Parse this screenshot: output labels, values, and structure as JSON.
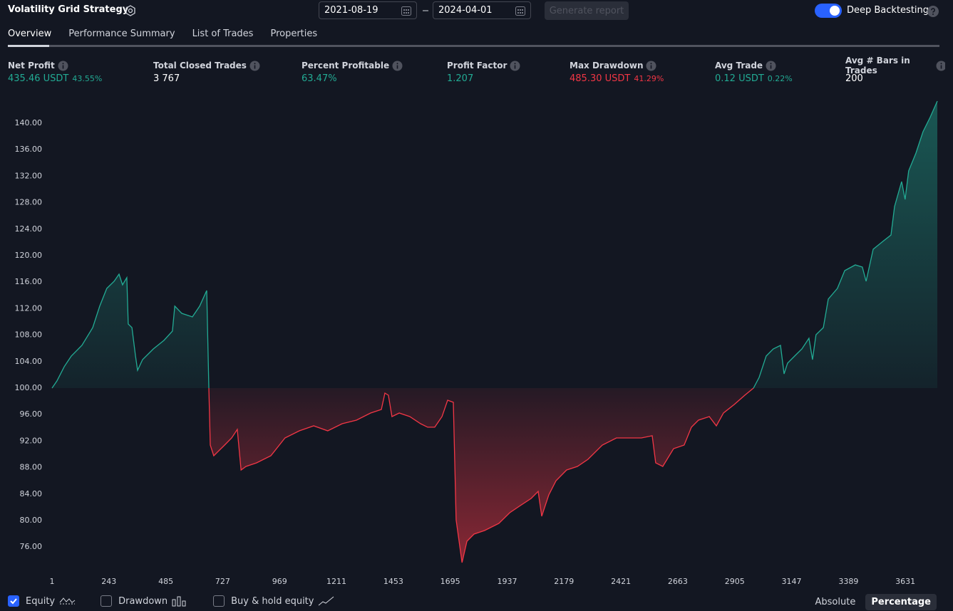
{
  "header": {
    "title": "Volatility Grid Strategy",
    "date_from": "2021-08-19",
    "date_to": "2024-04-01",
    "generate_button": "Generate report",
    "deep_backtesting": "Deep Backtesting"
  },
  "tabs": [
    "Overview",
    "Performance Summary",
    "List of Trades",
    "Properties"
  ],
  "metrics": [
    {
      "label": "Net Profit",
      "value": "435.46 USDT",
      "extra": "43.55%",
      "color": "#22ab94"
    },
    {
      "label": "Total Closed Trades",
      "value": "3 767",
      "color": "#ffffff"
    },
    {
      "label": "Percent Profitable",
      "value": "63.47%",
      "color": "#22ab94"
    },
    {
      "label": "Profit Factor",
      "value": "1.207",
      "color": "#22ab94"
    },
    {
      "label": "Max Drawdown",
      "value": "485.30 USDT",
      "extra": "41.29%",
      "color": "#f23645"
    },
    {
      "label": "Avg Trade",
      "value": "0.12 USDT",
      "extra": "0.22%",
      "color": "#22ab94"
    },
    {
      "label": "Avg # Bars in Trades",
      "value": "200",
      "color": "#ffffff"
    }
  ],
  "chart_data": {
    "type": "area",
    "x": [
      1,
      22,
      53,
      83,
      128,
      174,
      204,
      234,
      265,
      286,
      301,
      319,
      325,
      341,
      356,
      365,
      386,
      432,
      477,
      513,
      523,
      553,
      598,
      629,
      659,
      668,
      674,
      689,
      735,
      765,
      789,
      805,
      826,
      871,
      932,
      992,
      1053,
      1114,
      1174,
      1235,
      1296,
      1356,
      1402,
      1417,
      1432,
      1447,
      1478,
      1523,
      1569,
      1599,
      1629,
      1660,
      1684,
      1708,
      1720,
      1745,
      1766,
      1796,
      1841,
      1902,
      1948,
      1993,
      2039,
      2069,
      2084,
      2114,
      2145,
      2190,
      2236,
      2281,
      2342,
      2402,
      2448,
      2508,
      2554,
      2569,
      2599,
      2645,
      2690,
      2721,
      2751,
      2797,
      2827,
      2857,
      2903,
      2948,
      2985,
      3009,
      3039,
      3069,
      3100,
      3115,
      3130,
      3160,
      3191,
      3221,
      3236,
      3251,
      3282,
      3303,
      3342,
      3373,
      3418,
      3448,
      3464,
      3494,
      3539,
      3570,
      3585,
      3615,
      3630,
      3645,
      3676,
      3706,
      3736,
      3767
    ],
    "series": [
      {
        "name": "Equity",
        "color_up": "#22ab94",
        "color_down": "#f23645",
        "values": [
          100.0,
          101.08,
          103.23,
          104.84,
          106.45,
          109.14,
          112.37,
          115.05,
          116.13,
          117.2,
          115.59,
          116.67,
          109.68,
          109.14,
          104.84,
          102.69,
          104.3,
          105.91,
          107.2,
          108.6,
          112.37,
          111.29,
          110.75,
          112.37,
          114.73,
          100.0,
          91.4,
          89.78,
          91.4,
          92.47,
          93.76,
          87.63,
          88.17,
          88.71,
          89.78,
          92.47,
          93.55,
          94.3,
          93.55,
          94.62,
          95.16,
          96.24,
          96.77,
          99.25,
          98.92,
          95.7,
          96.24,
          95.7,
          94.62,
          94.09,
          94.09,
          95.7,
          98.17,
          97.85,
          80.11,
          73.66,
          76.88,
          77.96,
          78.49,
          79.57,
          81.18,
          82.26,
          83.33,
          84.41,
          80.65,
          83.87,
          86.02,
          87.63,
          88.17,
          89.25,
          91.4,
          92.47,
          92.47,
          92.47,
          92.8,
          88.71,
          88.17,
          90.86,
          91.4,
          94.09,
          95.16,
          95.7,
          94.3,
          96.24,
          97.53,
          98.92,
          100.0,
          101.61,
          104.84,
          105.91,
          106.45,
          102.15,
          103.76,
          104.84,
          105.91,
          107.53,
          104.3,
          108.06,
          109.14,
          113.44,
          115.05,
          117.74,
          118.6,
          118.28,
          116.13,
          120.97,
          122.26,
          123.12,
          127.42,
          131.18,
          128.49,
          132.8,
          135.48,
          138.71,
          140.86,
          143.33
        ]
      }
    ],
    "xlim": [
      1,
      3767
    ],
    "ylim": [
      72.58,
      144.62
    ],
    "xticks": [
      1,
      243,
      485,
      727,
      969,
      1211,
      1453,
      1695,
      1937,
      2179,
      2421,
      2663,
      2905,
      3147,
      3389,
      3631
    ],
    "yticks": [
      {
        "value": 76,
        "label": "76.00"
      },
      {
        "value": 80,
        "label": "80.00"
      },
      {
        "value": 84,
        "label": "84.00"
      },
      {
        "value": 88,
        "label": "88.00"
      },
      {
        "value": 92,
        "label": "92.00"
      },
      {
        "value": 96,
        "label": "96.00"
      },
      {
        "value": 100,
        "label": "100.00"
      },
      {
        "value": 104,
        "label": "104.00"
      },
      {
        "value": 108,
        "label": "108.00"
      },
      {
        "value": 112,
        "label": "112.00"
      },
      {
        "value": 116,
        "label": "116.00"
      },
      {
        "value": 120,
        "label": "120.00"
      },
      {
        "value": 124,
        "label": "124.00"
      },
      {
        "value": 128,
        "label": "128.00"
      },
      {
        "value": 132,
        "label": "132.00"
      },
      {
        "value": 136,
        "label": "136.00"
      },
      {
        "value": 140,
        "label": "140.00"
      }
    ],
    "grid": false
  },
  "footer": {
    "toggles": [
      "Drawdown",
      "Buy & hold equity"
    ],
    "modes": [
      "Absolute",
      "Percentage"
    ]
  }
}
